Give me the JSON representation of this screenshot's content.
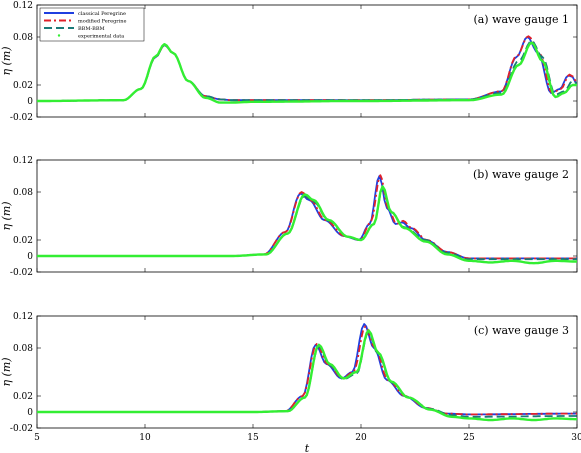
{
  "chart_data": [
    {
      "type": "line",
      "panel_id": "gauge-1",
      "title": "(a) wave gauge 1",
      "xlabel": "",
      "ylabel": "η (m)",
      "xlim": [
        5,
        30
      ],
      "ylim": [
        -0.02,
        0.12
      ],
      "xticks": [],
      "yticks": [
        -0.02,
        0,
        0.02,
        0.08,
        0.12
      ],
      "ytick_labels": [
        "-0.02",
        "0",
        "0.02",
        "0.08",
        "0.12"
      ],
      "grid": false,
      "legend": true,
      "legend_position": "top-left",
      "series": [
        {
          "name": "classical Peregrine",
          "color": "#1f3fe0",
          "style": "solid",
          "x": [
            5,
            9,
            9.8,
            10.5,
            10.9,
            11.3,
            12,
            12.8,
            13.5,
            14,
            20,
            25,
            26.5,
            27.2,
            27.7,
            28.2,
            28.8,
            29.2,
            29.6,
            29.8,
            30
          ],
          "y": [
            0,
            0.001,
            0.015,
            0.055,
            0.07,
            0.06,
            0.025,
            0.006,
            0.002,
            0.001,
            0.001,
            0.002,
            0.012,
            0.055,
            0.08,
            0.06,
            0.01,
            0.015,
            0.032,
            0.03,
            0.02
          ]
        },
        {
          "name": "modified Peregrine",
          "color": "#e0202a",
          "style": "dash-dot",
          "x": [
            5,
            9,
            9.8,
            10.5,
            10.9,
            11.3,
            12,
            12.8,
            13.5,
            14,
            20,
            25,
            26.5,
            27.2,
            27.75,
            28.25,
            28.85,
            29.25,
            29.65,
            29.85,
            30
          ],
          "y": [
            0,
            0.001,
            0.015,
            0.055,
            0.07,
            0.06,
            0.025,
            0.006,
            0.002,
            0.001,
            0.001,
            0.002,
            0.012,
            0.056,
            0.081,
            0.06,
            0.01,
            0.015,
            0.033,
            0.03,
            0.02
          ]
        },
        {
          "name": "BBM-BBM",
          "color": "#1a7a78",
          "style": "dashed",
          "x": [
            5,
            9,
            9.8,
            10.5,
            10.9,
            11.3,
            12,
            12.8,
            13.5,
            14,
            20,
            25,
            26.5,
            27.3,
            27.9,
            28.4,
            29,
            29.4,
            29.8,
            30
          ],
          "y": [
            0,
            0.001,
            0.015,
            0.055,
            0.07,
            0.06,
            0.025,
            0.006,
            0.002,
            0.001,
            0.001,
            0.002,
            0.01,
            0.05,
            0.075,
            0.055,
            0.008,
            0.012,
            0.025,
            0.022
          ]
        },
        {
          "name": "experimental data",
          "color": "#33ee33",
          "style": "markers",
          "x": [
            5,
            9,
            9.8,
            10.5,
            10.9,
            11.3,
            12,
            12.8,
            13.5,
            14,
            15,
            20,
            25,
            26.5,
            27.3,
            27.9,
            28.4,
            29,
            29.4,
            29.8,
            30
          ],
          "y": [
            0,
            0.001,
            0.015,
            0.056,
            0.071,
            0.06,
            0.025,
            0.004,
            -0.002,
            -0.002,
            -0.001,
            0,
            0.001,
            0.008,
            0.045,
            0.073,
            0.05,
            0.005,
            0.01,
            0.02,
            0.02
          ]
        }
      ]
    },
    {
      "type": "line",
      "panel_id": "gauge-2",
      "title": "(b) wave gauge 2",
      "xlabel": "",
      "ylabel": "η (m)",
      "xlim": [
        5,
        30
      ],
      "ylim": [
        -0.02,
        0.12
      ],
      "xticks": [],
      "yticks": [
        -0.02,
        0,
        0.02,
        0.08,
        0.12
      ],
      "ytick_labels": [
        "-0.02",
        "0",
        "0.02",
        "0.08",
        "0.12"
      ],
      "grid": false,
      "legend": false,
      "series": [
        {
          "name": "classical Peregrine",
          "color": "#1f3fe0",
          "style": "solid",
          "x": [
            5,
            14,
            15.5,
            16.5,
            17.2,
            17.6,
            18.3,
            19.2,
            19.9,
            20.4,
            20.85,
            21.2,
            21.6,
            21.9,
            22.3,
            23,
            24,
            25,
            30
          ],
          "y": [
            0,
            0,
            0.002,
            0.03,
            0.078,
            0.07,
            0.045,
            0.025,
            0.02,
            0.04,
            0.1,
            0.06,
            0.04,
            0.042,
            0.035,
            0.02,
            0.005,
            -0.003,
            -0.003
          ]
        },
        {
          "name": "modified Peregrine",
          "color": "#e0202a",
          "style": "dash-dot",
          "x": [
            5,
            14,
            15.5,
            16.5,
            17.25,
            17.65,
            18.35,
            19.25,
            19.95,
            20.45,
            20.9,
            21.25,
            21.65,
            21.95,
            22.35,
            23.05,
            24,
            25,
            30
          ],
          "y": [
            0,
            0,
            0.002,
            0.03,
            0.08,
            0.07,
            0.045,
            0.025,
            0.02,
            0.042,
            0.101,
            0.06,
            0.04,
            0.044,
            0.035,
            0.02,
            0.005,
            -0.003,
            -0.003
          ]
        },
        {
          "name": "BBM-BBM",
          "color": "#1a7a78",
          "style": "dashed",
          "x": [
            5,
            14,
            15.6,
            16.6,
            17.4,
            17.8,
            18.5,
            19.4,
            20,
            20.6,
            21,
            21.4,
            22,
            23,
            24,
            25,
            30
          ],
          "y": [
            0,
            0,
            0.002,
            0.028,
            0.075,
            0.068,
            0.044,
            0.024,
            0.02,
            0.04,
            0.085,
            0.055,
            0.036,
            0.02,
            0.004,
            -0.004,
            -0.004
          ]
        },
        {
          "name": "experimental data",
          "color": "#33ee33",
          "style": "markers",
          "x": [
            5,
            14,
            15.6,
            16.6,
            17.4,
            17.8,
            18.5,
            19.4,
            20,
            20.6,
            21,
            21.4,
            22,
            23,
            24,
            25,
            26,
            27,
            28,
            29,
            30
          ],
          "y": [
            0,
            0,
            0.002,
            0.028,
            0.077,
            0.07,
            0.045,
            0.024,
            0.02,
            0.04,
            0.087,
            0.055,
            0.035,
            0.018,
            0.002,
            -0.006,
            -0.008,
            -0.006,
            -0.009,
            -0.006,
            -0.007
          ]
        }
      ]
    },
    {
      "type": "line",
      "panel_id": "gauge-3",
      "title": "(c) wave gauge 3",
      "xlabel": "t",
      "ylabel": "η (m)",
      "xlim": [
        5,
        30
      ],
      "ylim": [
        -0.02,
        0.12
      ],
      "xticks": [
        5,
        10,
        15,
        20,
        25,
        30
      ],
      "xtick_labels": [
        "5",
        "10",
        "15",
        "20",
        "25",
        "30"
      ],
      "yticks": [
        -0.02,
        0,
        0.02,
        0.08,
        0.12
      ],
      "ytick_labels": [
        "-0.02",
        "0",
        "0.02",
        "0.08",
        "0.12"
      ],
      "grid": false,
      "legend": false,
      "series": [
        {
          "name": "classical Peregrine",
          "color": "#1f3fe0",
          "style": "solid",
          "x": [
            5,
            15,
            16.5,
            17.3,
            17.9,
            18.4,
            19.1,
            19.6,
            20.15,
            20.6,
            21.2,
            22,
            23,
            24,
            25,
            30
          ],
          "y": [
            0,
            0,
            0.001,
            0.02,
            0.084,
            0.06,
            0.042,
            0.05,
            0.11,
            0.08,
            0.04,
            0.02,
            0.005,
            -0.002,
            -0.003,
            -0.002
          ]
        },
        {
          "name": "modified Peregrine",
          "color": "#e0202a",
          "style": "dash-dot",
          "x": [
            5,
            15,
            16.5,
            17.3,
            17.95,
            18.45,
            19.15,
            19.65,
            20.2,
            20.65,
            21.25,
            22.05,
            23.05,
            24,
            25,
            30
          ],
          "y": [
            0,
            0,
            0.001,
            0.02,
            0.085,
            0.06,
            0.042,
            0.05,
            0.107,
            0.08,
            0.04,
            0.02,
            0.005,
            -0.002,
            -0.003,
            -0.002
          ]
        },
        {
          "name": "BBM-BBM",
          "color": "#1a7a78",
          "style": "dashed",
          "x": [
            5,
            15,
            16.6,
            17.4,
            18.05,
            18.55,
            19.2,
            19.8,
            20.35,
            20.8,
            21.4,
            22.2,
            23.2,
            24.2,
            25,
            30
          ],
          "y": [
            0,
            0,
            0.001,
            0.018,
            0.082,
            0.058,
            0.041,
            0.048,
            0.1,
            0.072,
            0.037,
            0.018,
            0.004,
            -0.004,
            -0.006,
            -0.005
          ]
        },
        {
          "name": "experimental data",
          "color": "#33ee33",
          "style": "markers",
          "x": [
            5,
            15,
            16.6,
            17.4,
            18.05,
            18.55,
            19.2,
            19.8,
            20.35,
            20.8,
            21.4,
            22.2,
            23.2,
            24.2,
            25,
            26,
            27,
            28,
            29,
            30
          ],
          "y": [
            0,
            0,
            0.001,
            0.018,
            0.084,
            0.06,
            0.042,
            0.05,
            0.102,
            0.074,
            0.038,
            0.018,
            0.003,
            -0.006,
            -0.008,
            -0.01,
            -0.008,
            -0.01,
            -0.008,
            -0.009
          ]
        }
      ]
    }
  ]
}
